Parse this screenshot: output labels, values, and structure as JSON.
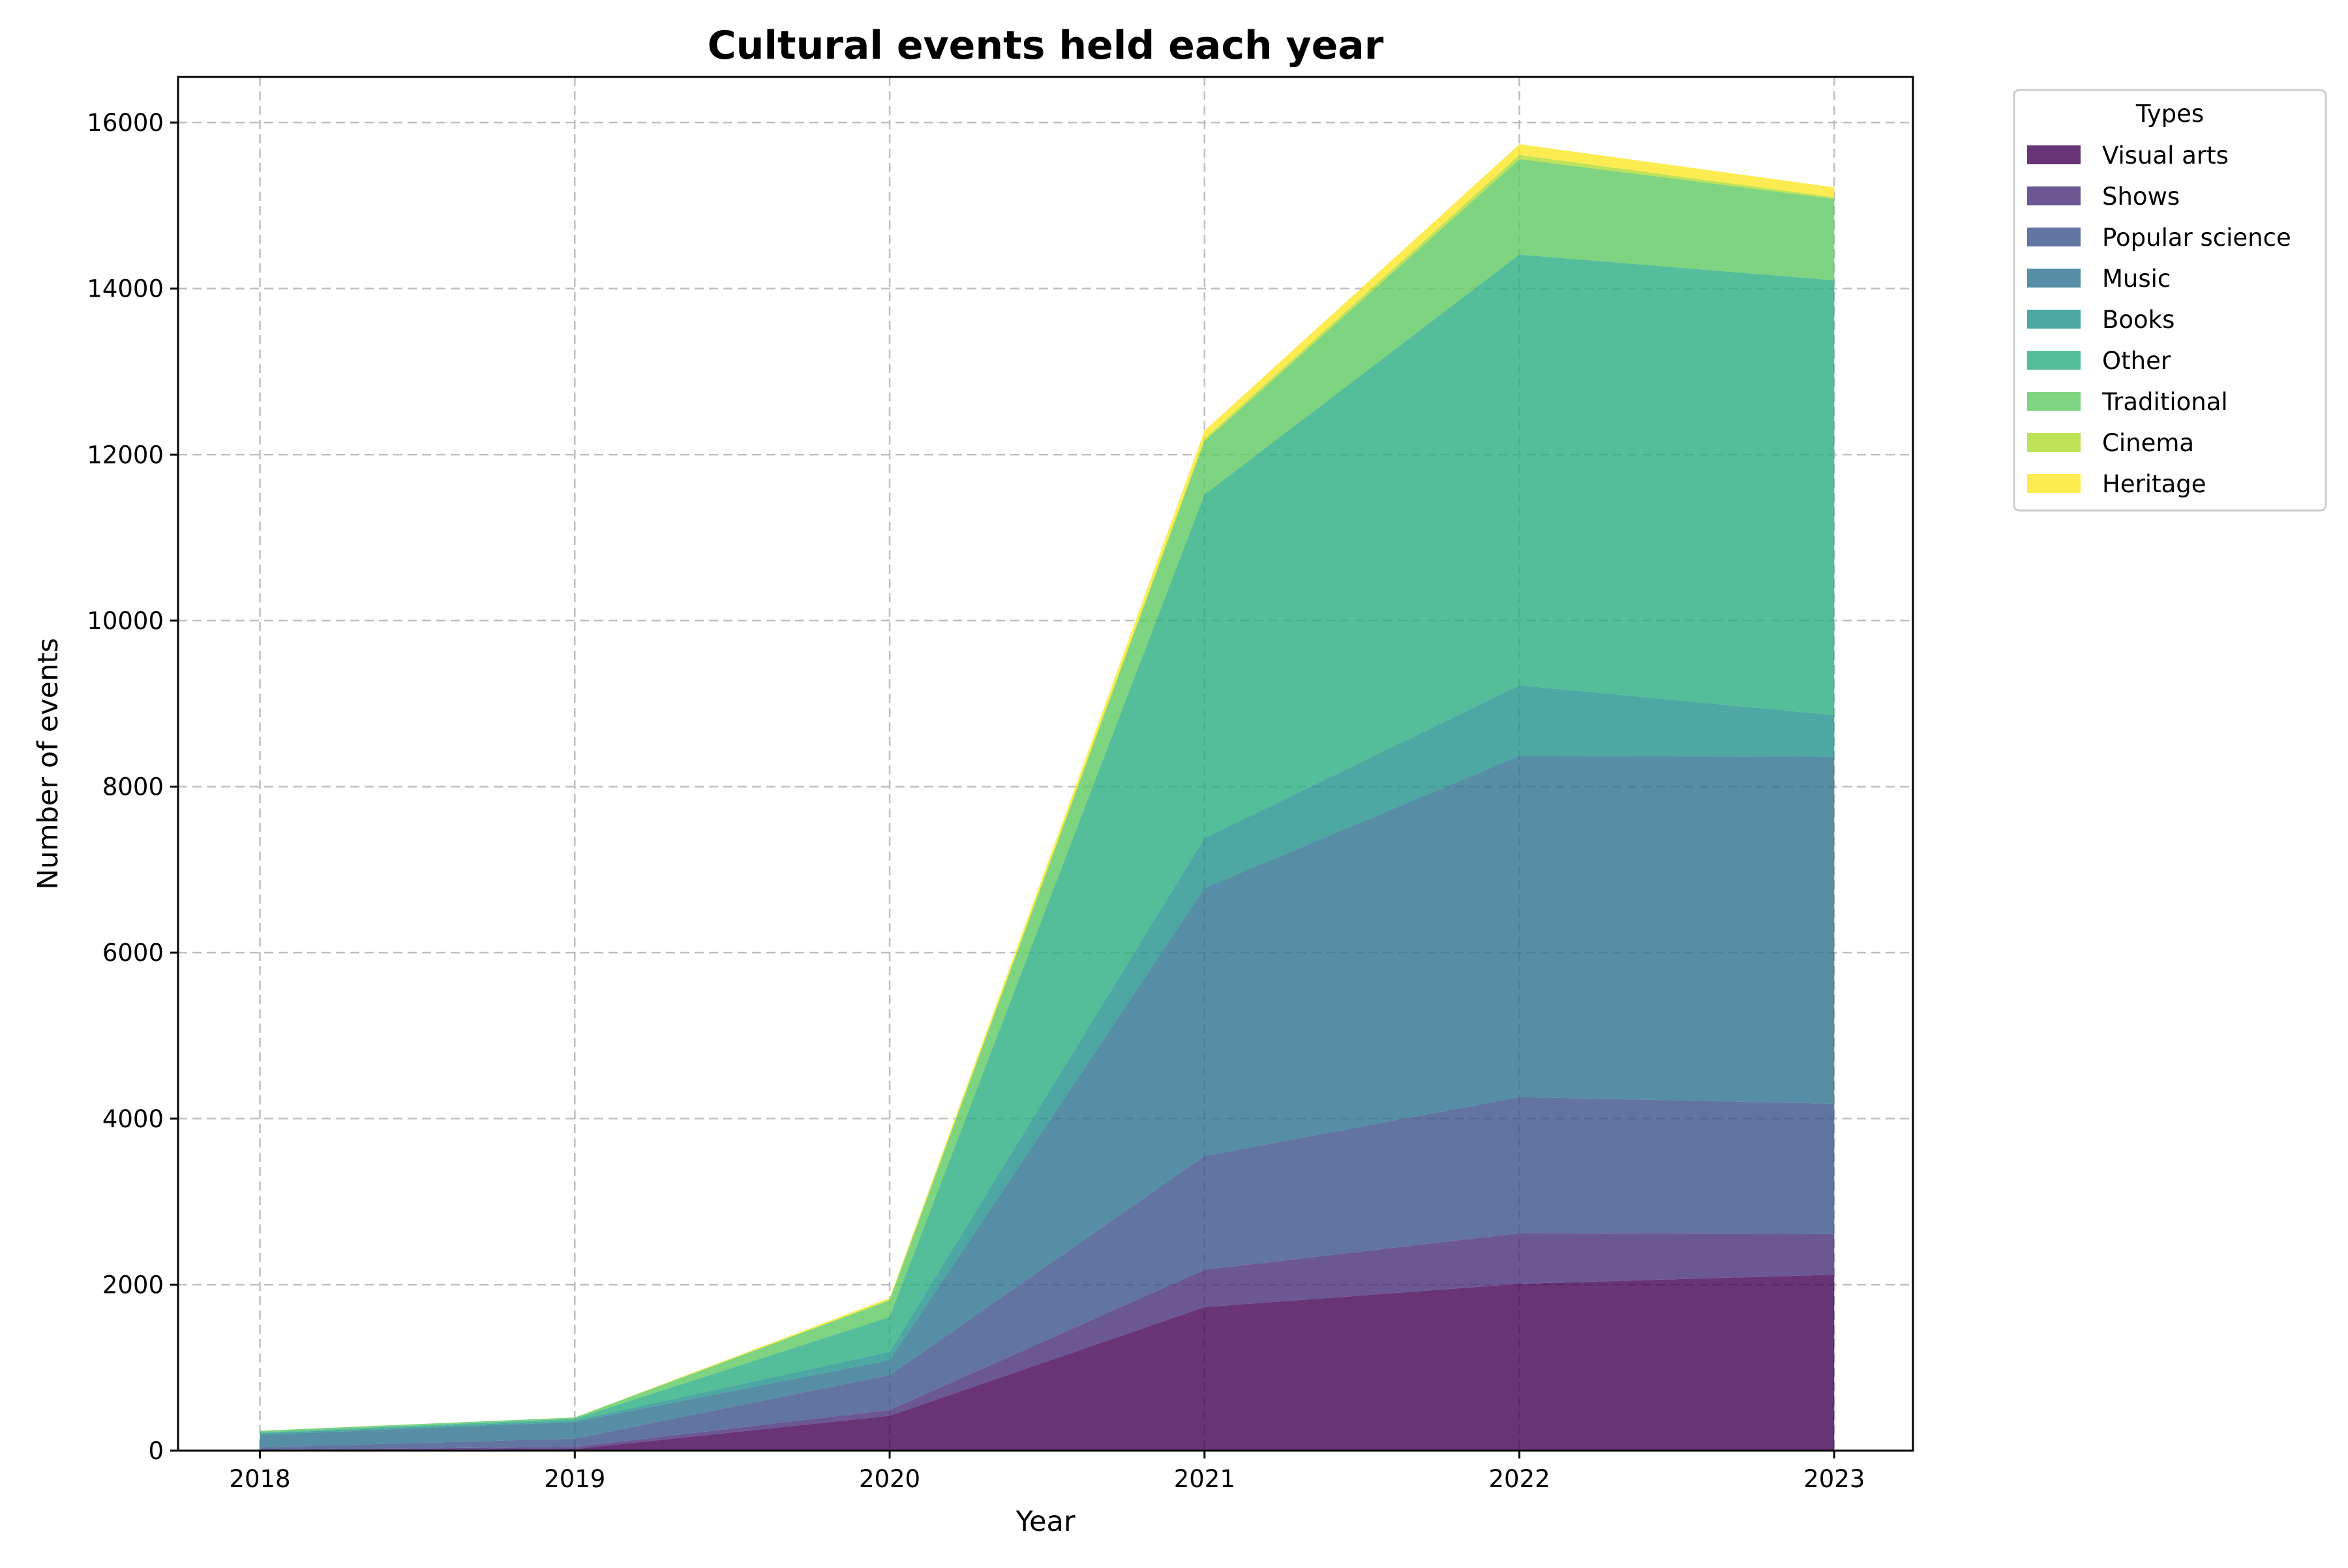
{
  "chart_data": {
    "type": "area",
    "stacked": true,
    "title": "Cultural events held each year",
    "xlabel": "Year",
    "ylabel": "Number of events",
    "x": [
      2018,
      2019,
      2020,
      2021,
      2022,
      2023
    ],
    "x_tick_labels": [
      "2018",
      "2019",
      "2020",
      "2021",
      "2022",
      "2023"
    ],
    "xlim": [
      2017.74,
      2023.25
    ],
    "ylim": [
      0,
      16550
    ],
    "y_ticks": [
      0,
      2000,
      4000,
      6000,
      8000,
      10000,
      12000,
      14000,
      16000
    ],
    "y_tick_labels": [
      "0",
      "2000",
      "4000",
      "6000",
      "8000",
      "10000",
      "12000",
      "14000",
      "16000"
    ],
    "grid": true,
    "legend": {
      "title": "Types",
      "placement": "outside top-right"
    },
    "series": [
      {
        "name": "Visual arts",
        "color": "#440154",
        "values": [
          0,
          20,
          420,
          1730,
          2010,
          2120
        ]
      },
      {
        "name": "Shows",
        "color": "#472d7b",
        "values": [
          10,
          25,
          70,
          450,
          610,
          490
        ]
      },
      {
        "name": "Popular science",
        "color": "#3b528b",
        "values": [
          30,
          100,
          420,
          1370,
          1640,
          1570
        ]
      },
      {
        "name": "Music",
        "color": "#2c728e",
        "values": [
          150,
          200,
          180,
          3230,
          4110,
          4180
        ]
      },
      {
        "name": "Books",
        "color": "#21918c",
        "values": [
          20,
          20,
          100,
          600,
          850,
          500
        ]
      },
      {
        "name": "Other",
        "color": "#28ae80",
        "values": [
          10,
          20,
          420,
          4140,
          5190,
          5240
        ]
      },
      {
        "name": "Traditional",
        "color": "#5ec962",
        "values": [
          20,
          15,
          200,
          640,
          1150,
          980
        ]
      },
      {
        "name": "Cinema",
        "color": "#addc30",
        "values": [
          0,
          0,
          10,
          30,
          50,
          20
        ]
      },
      {
        "name": "Heritage",
        "color": "#fde725",
        "values": [
          0,
          0,
          20,
          100,
          130,
          120
        ]
      }
    ]
  }
}
